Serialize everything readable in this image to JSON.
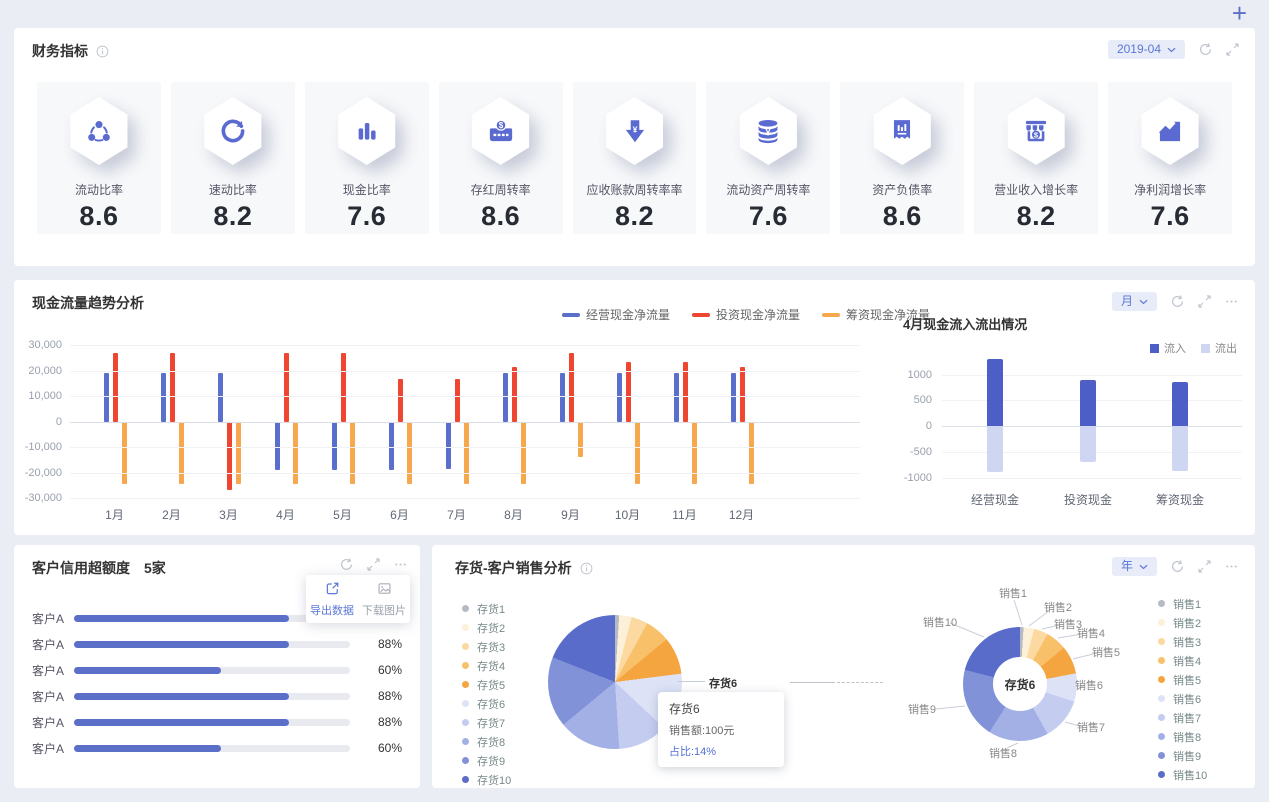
{
  "page": {
    "add_button": "+"
  },
  "financial_panel": {
    "title": "财务指标",
    "period_selector": "2019-04",
    "metrics": [
      {
        "label": "流动比率",
        "value": "8.6",
        "icon": "share-nodes"
      },
      {
        "label": "速动比率",
        "value": "8.2",
        "icon": "sync-circle"
      },
      {
        "label": "现金比率",
        "value": "7.6",
        "icon": "bar-chart"
      },
      {
        "label": "存红周转率",
        "value": "8.6",
        "icon": "cash-register"
      },
      {
        "label": "应收账款周转率率",
        "value": "8.2",
        "icon": "arrow-down-yen"
      },
      {
        "label": "流动资产周转率",
        "value": "7.6",
        "icon": "coins-yen"
      },
      {
        "label": "资产负债率",
        "value": "8.6",
        "icon": "receipt"
      },
      {
        "label": "营业收入增长率",
        "value": "8.2",
        "icon": "storefront-dollar"
      },
      {
        "label": "净利润增长率",
        "value": "7.6",
        "icon": "trend-up"
      }
    ]
  },
  "cashflow_panel": {
    "title": "现金流量趋势分析",
    "period_selector": "月"
  },
  "credit_panel": {
    "title": "客户信用超额度",
    "count_label": "5家",
    "menu": {
      "export_label": "导出数据",
      "download_label": "下载图片"
    }
  },
  "inventory_panel": {
    "title": "存货-客户销售分析",
    "period_selector": "年",
    "tooltip": {
      "title": "存货6",
      "sales": "销售额:100元",
      "share": "占比:14%"
    },
    "pie_callout_label": "存货6",
    "donut_center_label": "存货6"
  },
  "chart_data": [
    {
      "id": "cashflow_trend",
      "type": "bar",
      "title": "现金流量趋势分析",
      "categories": [
        "1月",
        "2月",
        "3月",
        "4月",
        "5月",
        "6月",
        "7月",
        "8月",
        "9月",
        "10月",
        "11月",
        "12月"
      ],
      "series": [
        {
          "name": "经营现金净流量",
          "color": "#5a6ecb",
          "values": [
            19000,
            19000,
            19000,
            -19000,
            -19000,
            -19000,
            -18500,
            19000,
            19000,
            19000,
            19000,
            19000
          ]
        },
        {
          "name": "投资现金净流量",
          "color": "#ee4631",
          "values": [
            27000,
            27000,
            -27000,
            27000,
            27000,
            16500,
            16500,
            21500,
            27000,
            23500,
            23500,
            21500
          ]
        },
        {
          "name": "筹资现金净流量",
          "color": "#f7a84e",
          "values": [
            -24500,
            -24500,
            -24500,
            -24500,
            -24500,
            -24500,
            -24500,
            -24500,
            -14000,
            -24500,
            -24500,
            -24500
          ]
        }
      ],
      "ylim": [
        -30000,
        30000
      ],
      "yticks": [
        "30,000",
        "20,000",
        "10,000",
        "0",
        "-10,000",
        "-20,000",
        "-30,000"
      ],
      "grid": true,
      "legend_position": "top-center"
    },
    {
      "id": "april_flow",
      "type": "bar",
      "title": "4月现金流入流出情况",
      "categories": [
        "经营现金",
        "投资现金",
        "筹资现金"
      ],
      "series": [
        {
          "name": "流入",
          "color": "#4d5ec6",
          "values": [
            1300,
            900,
            850
          ]
        },
        {
          "name": "流出",
          "color": "#cfd6f2",
          "values": [
            -900,
            -700,
            -880
          ]
        }
      ],
      "ylim": [
        -1150,
        1500
      ],
      "yticks": [
        1000,
        500,
        0,
        -500,
        -1000
      ],
      "grid": true,
      "legend_position": "top-right"
    },
    {
      "id": "credit_bars",
      "type": "bar",
      "title": "客户信用超额度",
      "categories": [
        "客户A",
        "客户A",
        "客户A",
        "客户A",
        "客户A",
        "客户A"
      ],
      "values": [
        88,
        88,
        60,
        88,
        88,
        60
      ],
      "labels": [
        "88%",
        "88%",
        "60%",
        "88%",
        "88%",
        "60%"
      ],
      "orientation": "horizontal",
      "bar_color": "#5b6fc9"
    },
    {
      "id": "inventory_pie",
      "type": "pie",
      "title": "存货-客户销售分析",
      "labels": [
        "存货1",
        "存货2",
        "存货3",
        "存货4",
        "存货5",
        "存货6",
        "存货7",
        "存货8",
        "存货9",
        "存货10"
      ],
      "values": [
        1,
        3,
        4,
        6,
        9,
        14,
        12,
        15,
        17,
        19
      ],
      "colors": [
        "#b6bac2",
        "#fdf0d8",
        "#fbd9a0",
        "#f9c06a",
        "#f5a540",
        "#dde2f6",
        "#c4cdf0",
        "#a3b0e6",
        "#8292d9",
        "#5a6cc9"
      ],
      "callout": {
        "label": "存货6",
        "sales": "销售额:100元",
        "share_pct": 14
      }
    },
    {
      "id": "sales_donut",
      "type": "pie",
      "title": "存货-客户销售分析(销售)",
      "labels": [
        "销售1",
        "销售2",
        "销售3",
        "销售4",
        "销售5",
        "销售6",
        "销售7",
        "销售8",
        "销售9",
        "销售10"
      ],
      "values": [
        1,
        3,
        4,
        6,
        8,
        8,
        12,
        17,
        20,
        21
      ],
      "colors": [
        "#b6bac2",
        "#fdf0d8",
        "#fbd9a0",
        "#f9c06a",
        "#f5a540",
        "#dde2f6",
        "#c4cdf0",
        "#a3b0e6",
        "#8292d9",
        "#5a6cc9"
      ],
      "center_label": "存货6",
      "donut": true
    }
  ]
}
